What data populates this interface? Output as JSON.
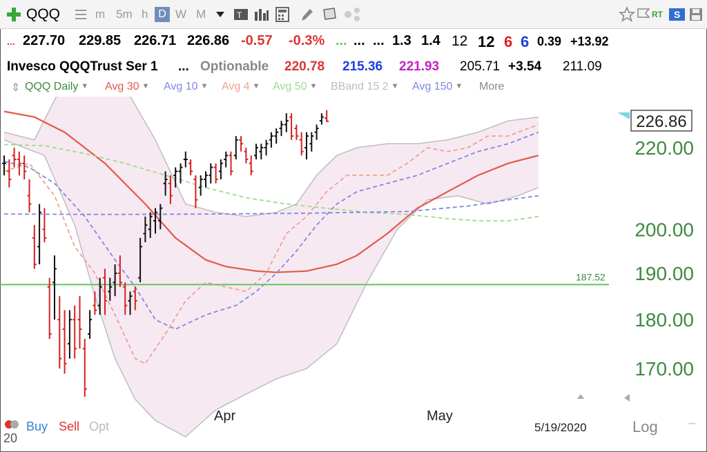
{
  "toolbar": {
    "add_icon": "plus-icon",
    "symbol": "QQQ",
    "list_icon": "list-icon",
    "timeframes": [
      "m",
      "5m",
      "h",
      "D",
      "W",
      "M"
    ],
    "active_timeframe": "D",
    "right_tags": [
      "RT",
      "S"
    ]
  },
  "quote_row1": {
    "marker": "...",
    "open": "227.70",
    "high": "229.85",
    "low": "226.71",
    "close": "226.86",
    "change": "-0.57",
    "change_pct": "-0.3%",
    "dots_green": "...",
    "dots_a": "...",
    "dots_b": "...",
    "f1": "1.3",
    "f2": "1.4",
    "f3": "12",
    "f4": "12",
    "f5": "6",
    "f6": "6",
    "f7": "0.39",
    "f8": "+13.92"
  },
  "quote_row2": {
    "name": "Invesco QQQTrust Ser 1",
    "dots": "...",
    "optionable": "Optionable",
    "v1": "220.78",
    "v2": "215.36",
    "v3": "221.93",
    "v4": "205.71",
    "v5": "+3.54",
    "v6": "211.09"
  },
  "legend": {
    "items": [
      {
        "label": "QQQ Daily",
        "color": "#3e8a3e"
      },
      {
        "label": "Avg 30",
        "color": "#e05a4a"
      },
      {
        "label": "Avg 10",
        "color": "#7f87e0"
      },
      {
        "label": "Avg 4",
        "color": "#f0a090"
      },
      {
        "label": "Avg 50",
        "color": "#9fd98f"
      },
      {
        "label": "BBand 15 2",
        "color": "#bdbdbd"
      },
      {
        "label": "Avg 150",
        "color": "#7f87e0"
      },
      {
        "label": "More",
        "color": "#888888"
      }
    ]
  },
  "chart_data": {
    "type": "ohlc",
    "symbol": "QQQ",
    "period": "Daily",
    "y_ticks": [
      170,
      180,
      190,
      200,
      220
    ],
    "ylim": [
      164.5,
      233.5
    ],
    "scale": "log",
    "x_labels": [
      "Apr",
      "May"
    ],
    "last_date": "5/19/2020",
    "last_price": "226.86",
    "hline": {
      "value": 187.52,
      "label": "187.52",
      "color": "#5cc75c"
    },
    "bars": [
      {
        "o": 216,
        "h": 218,
        "l": 213,
        "c": 216
      },
      {
        "o": 214,
        "h": 217,
        "l": 210,
        "c": 212
      },
      {
        "o": 218,
        "h": 220,
        "l": 215,
        "c": 217
      },
      {
        "o": 217,
        "h": 219,
        "l": 213,
        "c": 216
      },
      {
        "o": 216,
        "h": 218,
        "l": 212,
        "c": 214
      },
      {
        "o": 208,
        "h": 212,
        "l": 204,
        "c": 206
      },
      {
        "o": 198,
        "h": 201,
        "l": 191,
        "c": 192
      },
      {
        "o": 196,
        "h": 206,
        "l": 192,
        "c": 204
      },
      {
        "o": 200,
        "h": 205,
        "l": 197,
        "c": 198
      },
      {
        "o": 187,
        "h": 189,
        "l": 176,
        "c": 177
      },
      {
        "o": 188,
        "h": 194,
        "l": 180,
        "c": 191
      },
      {
        "o": 180,
        "h": 185,
        "l": 170,
        "c": 172
      },
      {
        "o": 178,
        "h": 182,
        "l": 169,
        "c": 171
      },
      {
        "o": 175,
        "h": 182,
        "l": 172,
        "c": 180
      },
      {
        "o": 180,
        "h": 183,
        "l": 172,
        "c": 174
      },
      {
        "o": 180,
        "h": 185,
        "l": 174,
        "c": 178
      },
      {
        "o": 174,
        "h": 176,
        "l": 164.5,
        "c": 166
      },
      {
        "o": 177,
        "h": 182,
        "l": 176,
        "c": 180
      },
      {
        "o": 183,
        "h": 186,
        "l": 181,
        "c": 182
      },
      {
        "o": 183,
        "h": 189,
        "l": 181,
        "c": 187
      },
      {
        "o": 189,
        "h": 191,
        "l": 181,
        "c": 184
      },
      {
        "o": 186,
        "h": 189,
        "l": 184,
        "c": 187
      },
      {
        "o": 188,
        "h": 192,
        "l": 185,
        "c": 190
      },
      {
        "o": 190,
        "h": 194,
        "l": 187,
        "c": 188
      },
      {
        "o": 187,
        "h": 188,
        "l": 181,
        "c": 183
      },
      {
        "o": 184,
        "h": 186,
        "l": 181,
        "c": 185
      },
      {
        "o": 186,
        "h": 187,
        "l": 182,
        "c": 184
      },
      {
        "o": 189,
        "h": 198,
        "l": 188,
        "c": 196
      },
      {
        "o": 199,
        "h": 203,
        "l": 197,
        "c": 201
      },
      {
        "o": 200,
        "h": 204,
        "l": 198,
        "c": 203
      },
      {
        "o": 202,
        "h": 205,
        "l": 199,
        "c": 204
      },
      {
        "o": 202,
        "h": 206,
        "l": 200,
        "c": 205
      },
      {
        "o": 211,
        "h": 214,
        "l": 208,
        "c": 212
      },
      {
        "o": 211,
        "h": 213,
        "l": 206,
        "c": 208
      },
      {
        "o": 213,
        "h": 215,
        "l": 210,
        "c": 214
      },
      {
        "o": 214,
        "h": 216,
        "l": 211,
        "c": 215
      },
      {
        "o": 217,
        "h": 219,
        "l": 215,
        "c": 217
      },
      {
        "o": 216,
        "h": 217,
        "l": 213,
        "c": 214
      },
      {
        "o": 212,
        "h": 213,
        "l": 205,
        "c": 207
      },
      {
        "o": 210,
        "h": 213,
        "l": 208,
        "c": 212
      },
      {
        "o": 212,
        "h": 214,
        "l": 210,
        "c": 213
      },
      {
        "o": 213,
        "h": 216,
        "l": 211,
        "c": 215
      },
      {
        "o": 215,
        "h": 216,
        "l": 211,
        "c": 212
      },
      {
        "o": 214,
        "h": 217,
        "l": 212,
        "c": 216
      },
      {
        "o": 217,
        "h": 219,
        "l": 215,
        "c": 218
      },
      {
        "o": 218,
        "h": 219,
        "l": 213,
        "c": 214
      },
      {
        "o": 218,
        "h": 223,
        "l": 217,
        "c": 222
      },
      {
        "o": 222,
        "h": 223,
        "l": 219,
        "c": 221
      },
      {
        "o": 219,
        "h": 220,
        "l": 216,
        "c": 217
      },
      {
        "o": 216,
        "h": 218,
        "l": 213,
        "c": 214
      },
      {
        "o": 218,
        "h": 221,
        "l": 217,
        "c": 220
      },
      {
        "o": 219,
        "h": 221,
        "l": 217,
        "c": 220
      },
      {
        "o": 220,
        "h": 222,
        "l": 218,
        "c": 221
      },
      {
        "o": 222,
        "h": 224,
        "l": 220,
        "c": 223
      },
      {
        "o": 223,
        "h": 225,
        "l": 221,
        "c": 224
      },
      {
        "o": 225,
        "h": 227,
        "l": 223,
        "c": 226
      },
      {
        "o": 226,
        "h": 229,
        "l": 224,
        "c": 227
      },
      {
        "o": 228,
        "h": 229,
        "l": 222,
        "c": 223
      },
      {
        "o": 225,
        "h": 226,
        "l": 222,
        "c": 223
      },
      {
        "o": 222,
        "h": 224,
        "l": 218,
        "c": 219
      },
      {
        "o": 220,
        "h": 224,
        "l": 217,
        "c": 223
      },
      {
        "o": 221,
        "h": 224,
        "l": 219,
        "c": 223
      },
      {
        "o": 224,
        "h": 226,
        "l": 222,
        "c": 225
      },
      {
        "o": 227,
        "h": 229,
        "l": 226,
        "c": 228
      },
      {
        "o": 227.7,
        "h": 229.85,
        "l": 226.71,
        "c": 226.86
      }
    ],
    "series": [
      {
        "type": "line",
        "color": "#e05a4a",
        "style": "solid",
        "values": [
          [
            0,
            229.5
          ],
          [
            6,
            228
          ],
          [
            12,
            224
          ],
          [
            20,
            216
          ],
          [
            28,
            206
          ],
          [
            34,
            198
          ],
          [
            40,
            193
          ],
          [
            44,
            191.5
          ],
          [
            50,
            190.5
          ],
          [
            54,
            190.2
          ],
          [
            60,
            190.5
          ],
          [
            66,
            192
          ],
          [
            70,
            194
          ],
          [
            76,
            199
          ],
          [
            82,
            205
          ],
          [
            88,
            209
          ],
          [
            94,
            213
          ],
          [
            100,
            216
          ],
          [
            106,
            218
          ]
        ]
      },
      {
        "type": "line",
        "color": "#7f87e0",
        "style": "dashed",
        "values": [
          [
            0,
            216.5
          ],
          [
            5,
            215
          ],
          [
            10,
            211
          ],
          [
            16,
            203
          ],
          [
            22,
            193
          ],
          [
            26,
            187
          ],
          [
            30,
            180
          ],
          [
            34,
            178
          ],
          [
            40,
            181
          ],
          [
            46,
            183
          ],
          [
            50,
            186
          ],
          [
            54,
            190
          ],
          [
            58,
            195
          ],
          [
            62,
            201
          ],
          [
            66,
            206
          ],
          [
            70,
            209
          ],
          [
            76,
            211
          ],
          [
            82,
            213
          ],
          [
            88,
            216
          ],
          [
            94,
            219
          ],
          [
            100,
            221
          ],
          [
            106,
            224
          ]
        ]
      },
      {
        "type": "line",
        "color": "#f0a090",
        "style": "dashed",
        "values": [
          [
            0,
            214
          ],
          [
            5,
            216
          ],
          [
            10,
            208
          ],
          [
            14,
            196
          ],
          [
            18,
            190
          ],
          [
            22,
            181
          ],
          [
            26,
            172
          ],
          [
            28,
            171
          ],
          [
            32,
            177
          ],
          [
            36,
            184
          ],
          [
            40,
            188
          ],
          [
            44,
            187
          ],
          [
            48,
            186
          ],
          [
            52,
            190
          ],
          [
            56,
            199
          ],
          [
            60,
            203
          ],
          [
            64,
            209
          ],
          [
            68,
            213
          ],
          [
            72,
            213
          ],
          [
            76,
            213
          ],
          [
            80,
            216
          ],
          [
            84,
            220
          ],
          [
            88,
            219
          ],
          [
            92,
            220
          ],
          [
            96,
            223
          ],
          [
            100,
            223
          ],
          [
            104,
            225
          ],
          [
            106,
            226
          ]
        ]
      },
      {
        "type": "line",
        "color": "#9fd98f",
        "style": "dashed",
        "values": [
          [
            0,
            220.8
          ],
          [
            8,
            220.5
          ],
          [
            16,
            218.5
          ],
          [
            24,
            216
          ],
          [
            32,
            213
          ],
          [
            40,
            210
          ],
          [
            48,
            207.5
          ],
          [
            56,
            206
          ],
          [
            64,
            205
          ],
          [
            72,
            204
          ],
          [
            80,
            203.5
          ],
          [
            88,
            202.5
          ],
          [
            94,
            202
          ],
          [
            100,
            202
          ],
          [
            106,
            203
          ]
        ]
      },
      {
        "type": "line",
        "color": "#7f87e0",
        "style": "dashed",
        "values": [
          [
            0,
            203.6
          ],
          [
            20,
            203.5
          ],
          [
            40,
            203.6
          ],
          [
            60,
            203.8
          ],
          [
            80,
            204.2
          ],
          [
            92,
            205.5
          ],
          [
            100,
            207
          ],
          [
            106,
            208
          ]
        ]
      },
      {
        "type": "band",
        "color": "#bdbdbd",
        "fill": "#f7e9f2",
        "upper": [
          [
            0,
            224
          ],
          [
            6,
            222
          ],
          [
            12,
            238
          ],
          [
            18,
            240
          ],
          [
            24,
            236
          ],
          [
            30,
            222
          ],
          [
            36,
            206
          ],
          [
            42,
            204
          ],
          [
            48,
            203
          ],
          [
            54,
            204
          ],
          [
            58,
            206
          ],
          [
            62,
            213
          ],
          [
            66,
            218
          ],
          [
            70,
            220
          ],
          [
            76,
            221
          ],
          [
            82,
            221
          ],
          [
            88,
            222
          ],
          [
            94,
            224
          ],
          [
            100,
            227
          ],
          [
            106,
            228
          ]
        ],
        "lower": [
          [
            0,
            222
          ],
          [
            8,
            218
          ],
          [
            14,
            201
          ],
          [
            18,
            185
          ],
          [
            22,
            172
          ],
          [
            26,
            164
          ],
          [
            30,
            160
          ],
          [
            36,
            157
          ],
          [
            42,
            162
          ],
          [
            48,
            165
          ],
          [
            54,
            168
          ],
          [
            60,
            170
          ],
          [
            66,
            175
          ],
          [
            72,
            188
          ],
          [
            78,
            200
          ],
          [
            84,
            207
          ],
          [
            90,
            208
          ],
          [
            96,
            206
          ],
          [
            102,
            208
          ],
          [
            106,
            210
          ]
        ]
      }
    ]
  },
  "bottom": {
    "buy": "Buy",
    "sell": "Sell",
    "opt": "Opt",
    "log": "Log",
    "counter": "20"
  }
}
